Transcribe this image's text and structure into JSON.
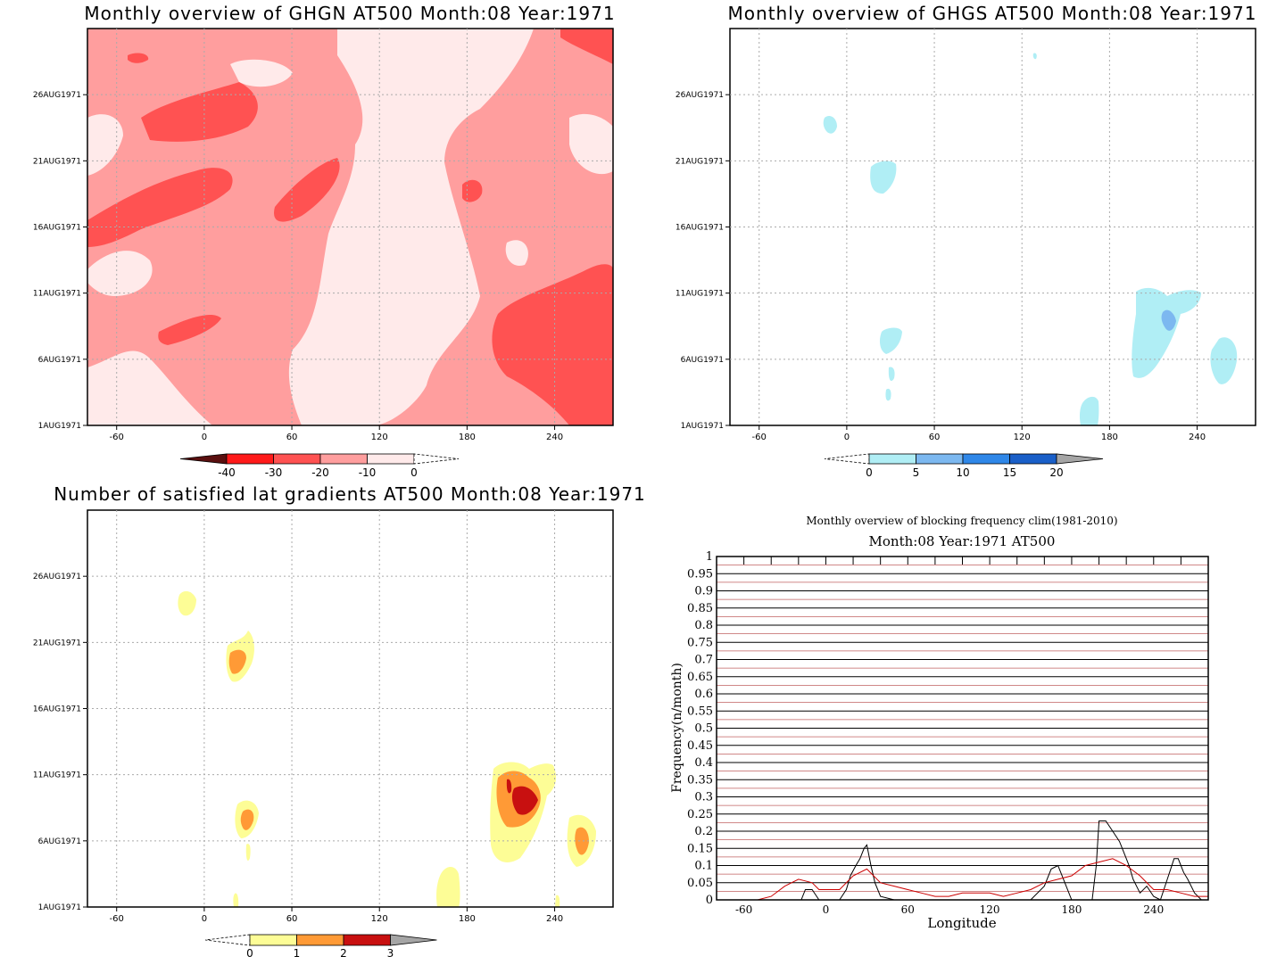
{
  "chart_data": [
    {
      "type": "heatmap",
      "title": "Monthly overview of GHGN AT500 Month:08 Year:1971",
      "x_ticks": [
        "-60",
        "0",
        "60",
        "120",
        "180",
        "240"
      ],
      "y_ticks": [
        "1AUG1971",
        "6AUG1971",
        "11AUG1971",
        "16AUG1971",
        "21AUG1971",
        "26AUG1971"
      ],
      "xlim": [
        -80,
        280
      ],
      "colorbar": {
        "labels": [
          "-40",
          "-30",
          "-20",
          "-10",
          "0"
        ],
        "colors": [
          "#5a0f0f",
          "#ff1a1a",
          "#ff5252",
          "#ff9e9e",
          "#ffeaea"
        ]
      }
    },
    {
      "type": "heatmap",
      "title": "Monthly overview of GHGS AT500 Month:08 Year:1971",
      "x_ticks": [
        "-60",
        "0",
        "60",
        "120",
        "180",
        "240"
      ],
      "y_ticks": [
        "1AUG1971",
        "6AUG1971",
        "11AUG1971",
        "16AUG1971",
        "21AUG1971",
        "26AUG1971"
      ],
      "xlim": [
        -80,
        280
      ],
      "colorbar": {
        "labels": [
          "0",
          "5",
          "10",
          "15",
          "20"
        ],
        "colors": [
          "#b0eef5",
          "#7cb8f0",
          "#2f87e8",
          "#1a5fc8",
          "#a5a5a5"
        ]
      }
    },
    {
      "type": "heatmap",
      "title": "Number of satisfied lat gradients AT500 Month:08 Year:1971",
      "x_ticks": [
        "-60",
        "0",
        "60",
        "120",
        "180",
        "240"
      ],
      "y_ticks": [
        "1AUG1971",
        "6AUG1971",
        "11AUG1971",
        "16AUG1971",
        "21AUG1971",
        "26AUG1971"
      ],
      "xlim": [
        -80,
        280
      ],
      "colorbar": {
        "labels": [
          "0",
          "1",
          "2",
          "3"
        ],
        "colors": [
          "#fdfd96",
          "#ff9a36",
          "#c81010",
          "#a5a5a5"
        ]
      }
    },
    {
      "type": "line",
      "title": "Monthly overview of blocking frequency clim(1981-2010)",
      "subtitle": "Month:08 Year:1971  AT500",
      "xlabel": "Longitude",
      "ylabel": "Frequency(n/month)",
      "x_ticks": [
        "-60",
        "0",
        "60",
        "120",
        "180",
        "240"
      ],
      "y_ticks": [
        "0",
        "0.05",
        "0.1",
        "0.15",
        "0.2",
        "0.25",
        "0.3",
        "0.35",
        "0.4",
        "0.45",
        "0.5",
        "0.55",
        "0.6",
        "0.65",
        "0.7",
        "0.75",
        "0.8",
        "0.85",
        "0.9",
        "0.95",
        "1"
      ],
      "xlim": [
        -80,
        280
      ],
      "ylim": [
        0,
        1
      ],
      "series": [
        {
          "color": "#000000",
          "x": [
            -80,
            -20,
            -18,
            -15,
            -10,
            -5,
            0,
            5,
            10,
            15,
            18,
            22,
            25,
            28,
            30,
            33,
            36,
            40,
            50,
            60,
            150,
            160,
            165,
            170,
            175,
            180,
            185,
            190,
            195,
            198,
            200,
            205,
            210,
            215,
            220,
            222,
            225,
            230,
            235,
            240,
            245,
            250,
            255,
            258,
            262,
            265,
            270,
            275,
            280
          ],
          "y": [
            0,
            0,
            0,
            0.03,
            0.03,
            0,
            0,
            0,
            0,
            0.03,
            0.07,
            0.1,
            0.12,
            0.15,
            0.16,
            0.1,
            0.05,
            0.01,
            0,
            0,
            0,
            0.04,
            0.09,
            0.1,
            0.05,
            0,
            0,
            0,
            0,
            0.1,
            0.23,
            0.23,
            0.2,
            0.17,
            0.12,
            0.1,
            0.06,
            0.02,
            0.04,
            0.01,
            0,
            0.06,
            0.12,
            0.12,
            0.08,
            0.06,
            0.02,
            0,
            0
          ]
        },
        {
          "color": "#cc0000",
          "x": [
            -80,
            -60,
            -50,
            -40,
            -30,
            -20,
            -15,
            -10,
            -5,
            0,
            10,
            20,
            30,
            40,
            50,
            60,
            70,
            80,
            90,
            100,
            110,
            120,
            130,
            140,
            150,
            160,
            170,
            180,
            190,
            200,
            210,
            220,
            230,
            240,
            250,
            260,
            270,
            280
          ],
          "y": [
            0,
            0,
            0,
            0.01,
            0.04,
            0.06,
            0.055,
            0.05,
            0.03,
            0.03,
            0.03,
            0.07,
            0.09,
            0.05,
            0.04,
            0.03,
            0.02,
            0.01,
            0.01,
            0.02,
            0.02,
            0.02,
            0.01,
            0.02,
            0.03,
            0.05,
            0.06,
            0.07,
            0.1,
            0.11,
            0.12,
            0.1,
            0.07,
            0.03,
            0.03,
            0.02,
            0.01,
            0.01
          ]
        }
      ]
    }
  ]
}
